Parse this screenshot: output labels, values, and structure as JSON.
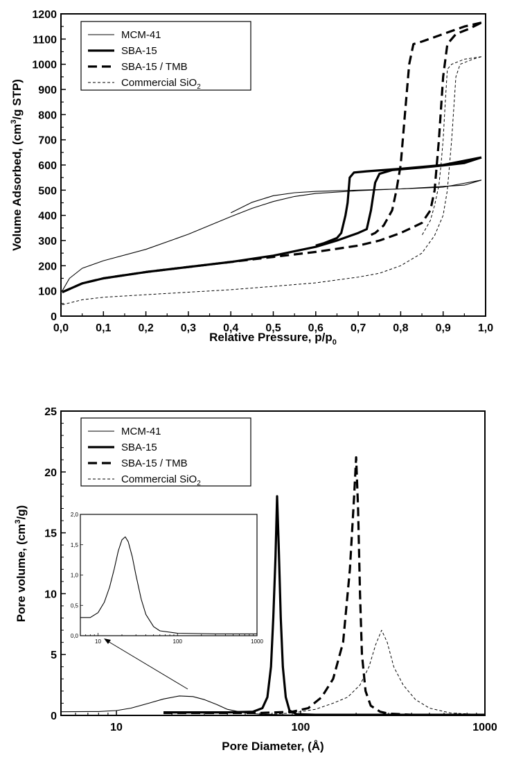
{
  "chart_data": [
    {
      "type": "line",
      "xlabel": "Relative Pressure, p/p",
      "xlabel_sub": "0",
      "ylabel": "Volume Adsorbed, (cm",
      "ylabel_sup": "3",
      "ylabel_end": "/g STP)",
      "xlim": [
        0,
        1.0
      ],
      "ylim": [
        0,
        1200
      ],
      "xticks": [
        0,
        0.1,
        0.2,
        0.3,
        0.4,
        0.5,
        0.6,
        0.7,
        0.8,
        0.9,
        1.0
      ],
      "xtick_labels": [
        "0,0",
        "0,1",
        "0,2",
        "0,3",
        "0,4",
        "0,5",
        "0,6",
        "0,7",
        "0,8",
        "0,9",
        "1,0"
      ],
      "yticks": [
        0,
        100,
        200,
        300,
        400,
        500,
        600,
        700,
        800,
        900,
        1000,
        1100,
        1200
      ],
      "ytick_labels": [
        "0",
        "100",
        "200",
        "300",
        "400",
        "500",
        "600",
        "700",
        "800",
        "900",
        "1000",
        "1100",
        "1200"
      ],
      "legend_position": "top-left",
      "series": [
        {
          "name": "MCM-41",
          "name_sub": "",
          "style": "thin-solid",
          "adsorption": [
            [
              0.003,
              100
            ],
            [
              0.02,
              150
            ],
            [
              0.05,
              190
            ],
            [
              0.1,
              220
            ],
            [
              0.2,
              265
            ],
            [
              0.3,
              325
            ],
            [
              0.4,
              395
            ],
            [
              0.45,
              428
            ],
            [
              0.5,
              455
            ],
            [
              0.55,
              475
            ],
            [
              0.6,
              487
            ],
            [
              0.7,
              498
            ],
            [
              0.8,
              505
            ],
            [
              0.9,
              515
            ],
            [
              0.95,
              520
            ],
            [
              0.99,
              540
            ]
          ],
          "desorption": [
            [
              0.99,
              540
            ],
            [
              0.9,
              512
            ],
            [
              0.8,
              505
            ],
            [
              0.7,
              500
            ],
            [
              0.6,
              495
            ],
            [
              0.55,
              490
            ],
            [
              0.5,
              478
            ],
            [
              0.45,
              452
            ],
            [
              0.4,
              410
            ]
          ]
        },
        {
          "name": "SBA-15",
          "name_sub": "",
          "style": "thick-solid",
          "adsorption": [
            [
              0.003,
              95
            ],
            [
              0.05,
              130
            ],
            [
              0.1,
              150
            ],
            [
              0.2,
              175
            ],
            [
              0.3,
              195
            ],
            [
              0.4,
              215
            ],
            [
              0.5,
              240
            ],
            [
              0.6,
              275
            ],
            [
              0.65,
              300
            ],
            [
              0.7,
              330
            ],
            [
              0.72,
              345
            ],
            [
              0.73,
              420
            ],
            [
              0.74,
              530
            ],
            [
              0.75,
              565
            ],
            [
              0.78,
              580
            ],
            [
              0.85,
              590
            ],
            [
              0.9,
              598
            ],
            [
              0.95,
              608
            ],
            [
              0.99,
              630
            ]
          ],
          "desorption": [
            [
              0.99,
              630
            ],
            [
              0.9,
              600
            ],
            [
              0.8,
              585
            ],
            [
              0.72,
              575
            ],
            [
              0.69,
              570
            ],
            [
              0.68,
              550
            ],
            [
              0.675,
              450
            ],
            [
              0.67,
              400
            ],
            [
              0.66,
              330
            ],
            [
              0.65,
              310
            ],
            [
              0.62,
              290
            ],
            [
              0.6,
              280
            ]
          ]
        },
        {
          "name": "SBA-15 / TMB",
          "name_sub": "",
          "style": "thick-dashed",
          "adsorption": [
            [
              0.003,
              95
            ],
            [
              0.05,
              130
            ],
            [
              0.1,
              150
            ],
            [
              0.2,
              175
            ],
            [
              0.3,
              195
            ],
            [
              0.4,
              215
            ],
            [
              0.5,
              235
            ],
            [
              0.6,
              255
            ],
            [
              0.7,
              280
            ],
            [
              0.75,
              300
            ],
            [
              0.8,
              330
            ],
            [
              0.85,
              370
            ],
            [
              0.87,
              420
            ],
            [
              0.88,
              500
            ],
            [
              0.89,
              700
            ],
            [
              0.9,
              950
            ],
            [
              0.91,
              1080
            ],
            [
              0.93,
              1120
            ],
            [
              0.96,
              1140
            ],
            [
              0.99,
              1165
            ]
          ],
          "desorption": [
            [
              0.99,
              1165
            ],
            [
              0.95,
              1150
            ],
            [
              0.9,
              1120
            ],
            [
              0.85,
              1090
            ],
            [
              0.83,
              1080
            ],
            [
              0.82,
              1000
            ],
            [
              0.81,
              800
            ],
            [
              0.8,
              600
            ],
            [
              0.79,
              500
            ],
            [
              0.78,
              420
            ],
            [
              0.76,
              360
            ],
            [
              0.74,
              330
            ],
            [
              0.72,
              315
            ]
          ]
        },
        {
          "name": "Commercial SiO",
          "name_sub": "2",
          "style": "thin-dashed",
          "adsorption": [
            [
              0.003,
              45
            ],
            [
              0.05,
              65
            ],
            [
              0.1,
              75
            ],
            [
              0.2,
              85
            ],
            [
              0.3,
              95
            ],
            [
              0.4,
              105
            ],
            [
              0.5,
              118
            ],
            [
              0.6,
              132
            ],
            [
              0.7,
              155
            ],
            [
              0.75,
              170
            ],
            [
              0.8,
              200
            ],
            [
              0.85,
              250
            ],
            [
              0.88,
              320
            ],
            [
              0.9,
              400
            ],
            [
              0.91,
              500
            ],
            [
              0.92,
              700
            ],
            [
              0.93,
              950
            ],
            [
              0.94,
              1000
            ],
            [
              0.97,
              1020
            ],
            [
              0.99,
              1030
            ]
          ],
          "desorption": [
            [
              0.99,
              1030
            ],
            [
              0.95,
              1020
            ],
            [
              0.92,
              1000
            ],
            [
              0.91,
              980
            ],
            [
              0.905,
              850
            ],
            [
              0.9,
              700
            ],
            [
              0.895,
              600
            ],
            [
              0.89,
              520
            ],
            [
              0.88,
              440
            ],
            [
              0.87,
              380
            ],
            [
              0.85,
              320
            ]
          ]
        }
      ]
    },
    {
      "type": "line",
      "xscale": "log",
      "xlabel": "Pore Diameter, (Å)",
      "ylabel": "Pore volume, (cm",
      "ylabel_sup": "3",
      "ylabel_end": "/g)",
      "xlim": [
        5,
        1000
      ],
      "ylim": [
        0,
        25
      ],
      "xticks": [
        10,
        100,
        1000
      ],
      "xtick_labels": [
        "10",
        "100",
        "1000"
      ],
      "yticks": [
        0,
        5,
        10,
        15,
        20,
        25
      ],
      "ytick_labels": [
        "0",
        "5",
        "10",
        "15",
        "20",
        "25"
      ],
      "legend_position": "top-left",
      "series": [
        {
          "name": "MCM-41",
          "name_sub": "",
          "style": "thin-solid",
          "points": [
            [
              5,
              0.3
            ],
            [
              8,
              0.32
            ],
            [
              10,
              0.4
            ],
            [
              12,
              0.6
            ],
            [
              15,
              1.0
            ],
            [
              18,
              1.35
            ],
            [
              22,
              1.6
            ],
            [
              26,
              1.55
            ],
            [
              30,
              1.3
            ],
            [
              35,
              0.9
            ],
            [
              40,
              0.5
            ],
            [
              50,
              0.2
            ],
            [
              60,
              0.1
            ],
            [
              80,
              0.05
            ],
            [
              100,
              0.03
            ]
          ]
        },
        {
          "name": "SBA-15",
          "name_sub": "",
          "style": "thick-solid",
          "points": [
            [
              18,
              0.25
            ],
            [
              40,
              0.25
            ],
            [
              55,
              0.3
            ],
            [
              62,
              0.6
            ],
            [
              66,
              1.5
            ],
            [
              69,
              4
            ],
            [
              71,
              8
            ],
            [
              73,
              13
            ],
            [
              74.5,
              18
            ],
            [
              76,
              14
            ],
            [
              78,
              8
            ],
            [
              80,
              4
            ],
            [
              83,
              1.5
            ],
            [
              87,
              0.4
            ],
            [
              95,
              0.1
            ],
            [
              120,
              0.05
            ],
            [
              1000,
              0.05
            ]
          ]
        },
        {
          "name": "SBA-15 / TMB",
          "name_sub": "",
          "style": "thick-dashed",
          "points": [
            [
              18,
              0.2
            ],
            [
              60,
              0.2
            ],
            [
              90,
              0.3
            ],
            [
              110,
              0.6
            ],
            [
              130,
              1.5
            ],
            [
              150,
              3
            ],
            [
              170,
              6
            ],
            [
              185,
              12
            ],
            [
              195,
              18
            ],
            [
              200,
              21.2
            ],
            [
              205,
              17
            ],
            [
              210,
              10
            ],
            [
              215,
              5
            ],
            [
              225,
              2
            ],
            [
              240,
              0.8
            ],
            [
              270,
              0.3
            ],
            [
              300,
              0.15
            ],
            [
              400,
              0.05
            ],
            [
              1000,
              0.05
            ]
          ]
        },
        {
          "name": "Commercial SiO",
          "name_sub": "2",
          "style": "thin-dashed",
          "points": [
            [
              60,
              0.05
            ],
            [
              90,
              0.2
            ],
            [
              120,
              0.5
            ],
            [
              150,
              1
            ],
            [
              180,
              1.5
            ],
            [
              210,
              2.5
            ],
            [
              235,
              4
            ],
            [
              255,
              5.8
            ],
            [
              275,
              7
            ],
            [
              295,
              6
            ],
            [
              320,
              4
            ],
            [
              360,
              2.5
            ],
            [
              420,
              1.3
            ],
            [
              500,
              0.6
            ],
            [
              650,
              0.2
            ],
            [
              1000,
              0.05
            ]
          ]
        }
      ],
      "inset": {
        "xscale": "log",
        "xlim": [
          6,
          1000
        ],
        "ylim": [
          0,
          2.0
        ],
        "xticks": [
          10,
          100,
          1000
        ],
        "xtick_labels": [
          "10",
          "100",
          "1000"
        ],
        "yticks": [
          0,
          0.5,
          1.0,
          1.5,
          2.0
        ],
        "ytick_labels": [
          "0,0",
          "0,5",
          "1,0",
          "1,5",
          "2,0"
        ],
        "series": [
          {
            "name": "MCM-41",
            "style": "thin-solid",
            "points": [
              [
                6,
                0.3
              ],
              [
                8,
                0.3
              ],
              [
                10,
                0.38
              ],
              [
                12,
                0.55
              ],
              [
                14,
                0.8
              ],
              [
                16,
                1.1
              ],
              [
                18,
                1.4
              ],
              [
                20,
                1.58
              ],
              [
                22,
                1.63
              ],
              [
                24,
                1.55
              ],
              [
                27,
                1.3
              ],
              [
                30,
                1.0
              ],
              [
                35,
                0.6
              ],
              [
                40,
                0.35
              ],
              [
                50,
                0.15
              ],
              [
                60,
                0.08
              ],
              [
                100,
                0.04
              ],
              [
                300,
                0.03
              ],
              [
                1000,
                0.03
              ]
            ]
          }
        ]
      }
    }
  ]
}
